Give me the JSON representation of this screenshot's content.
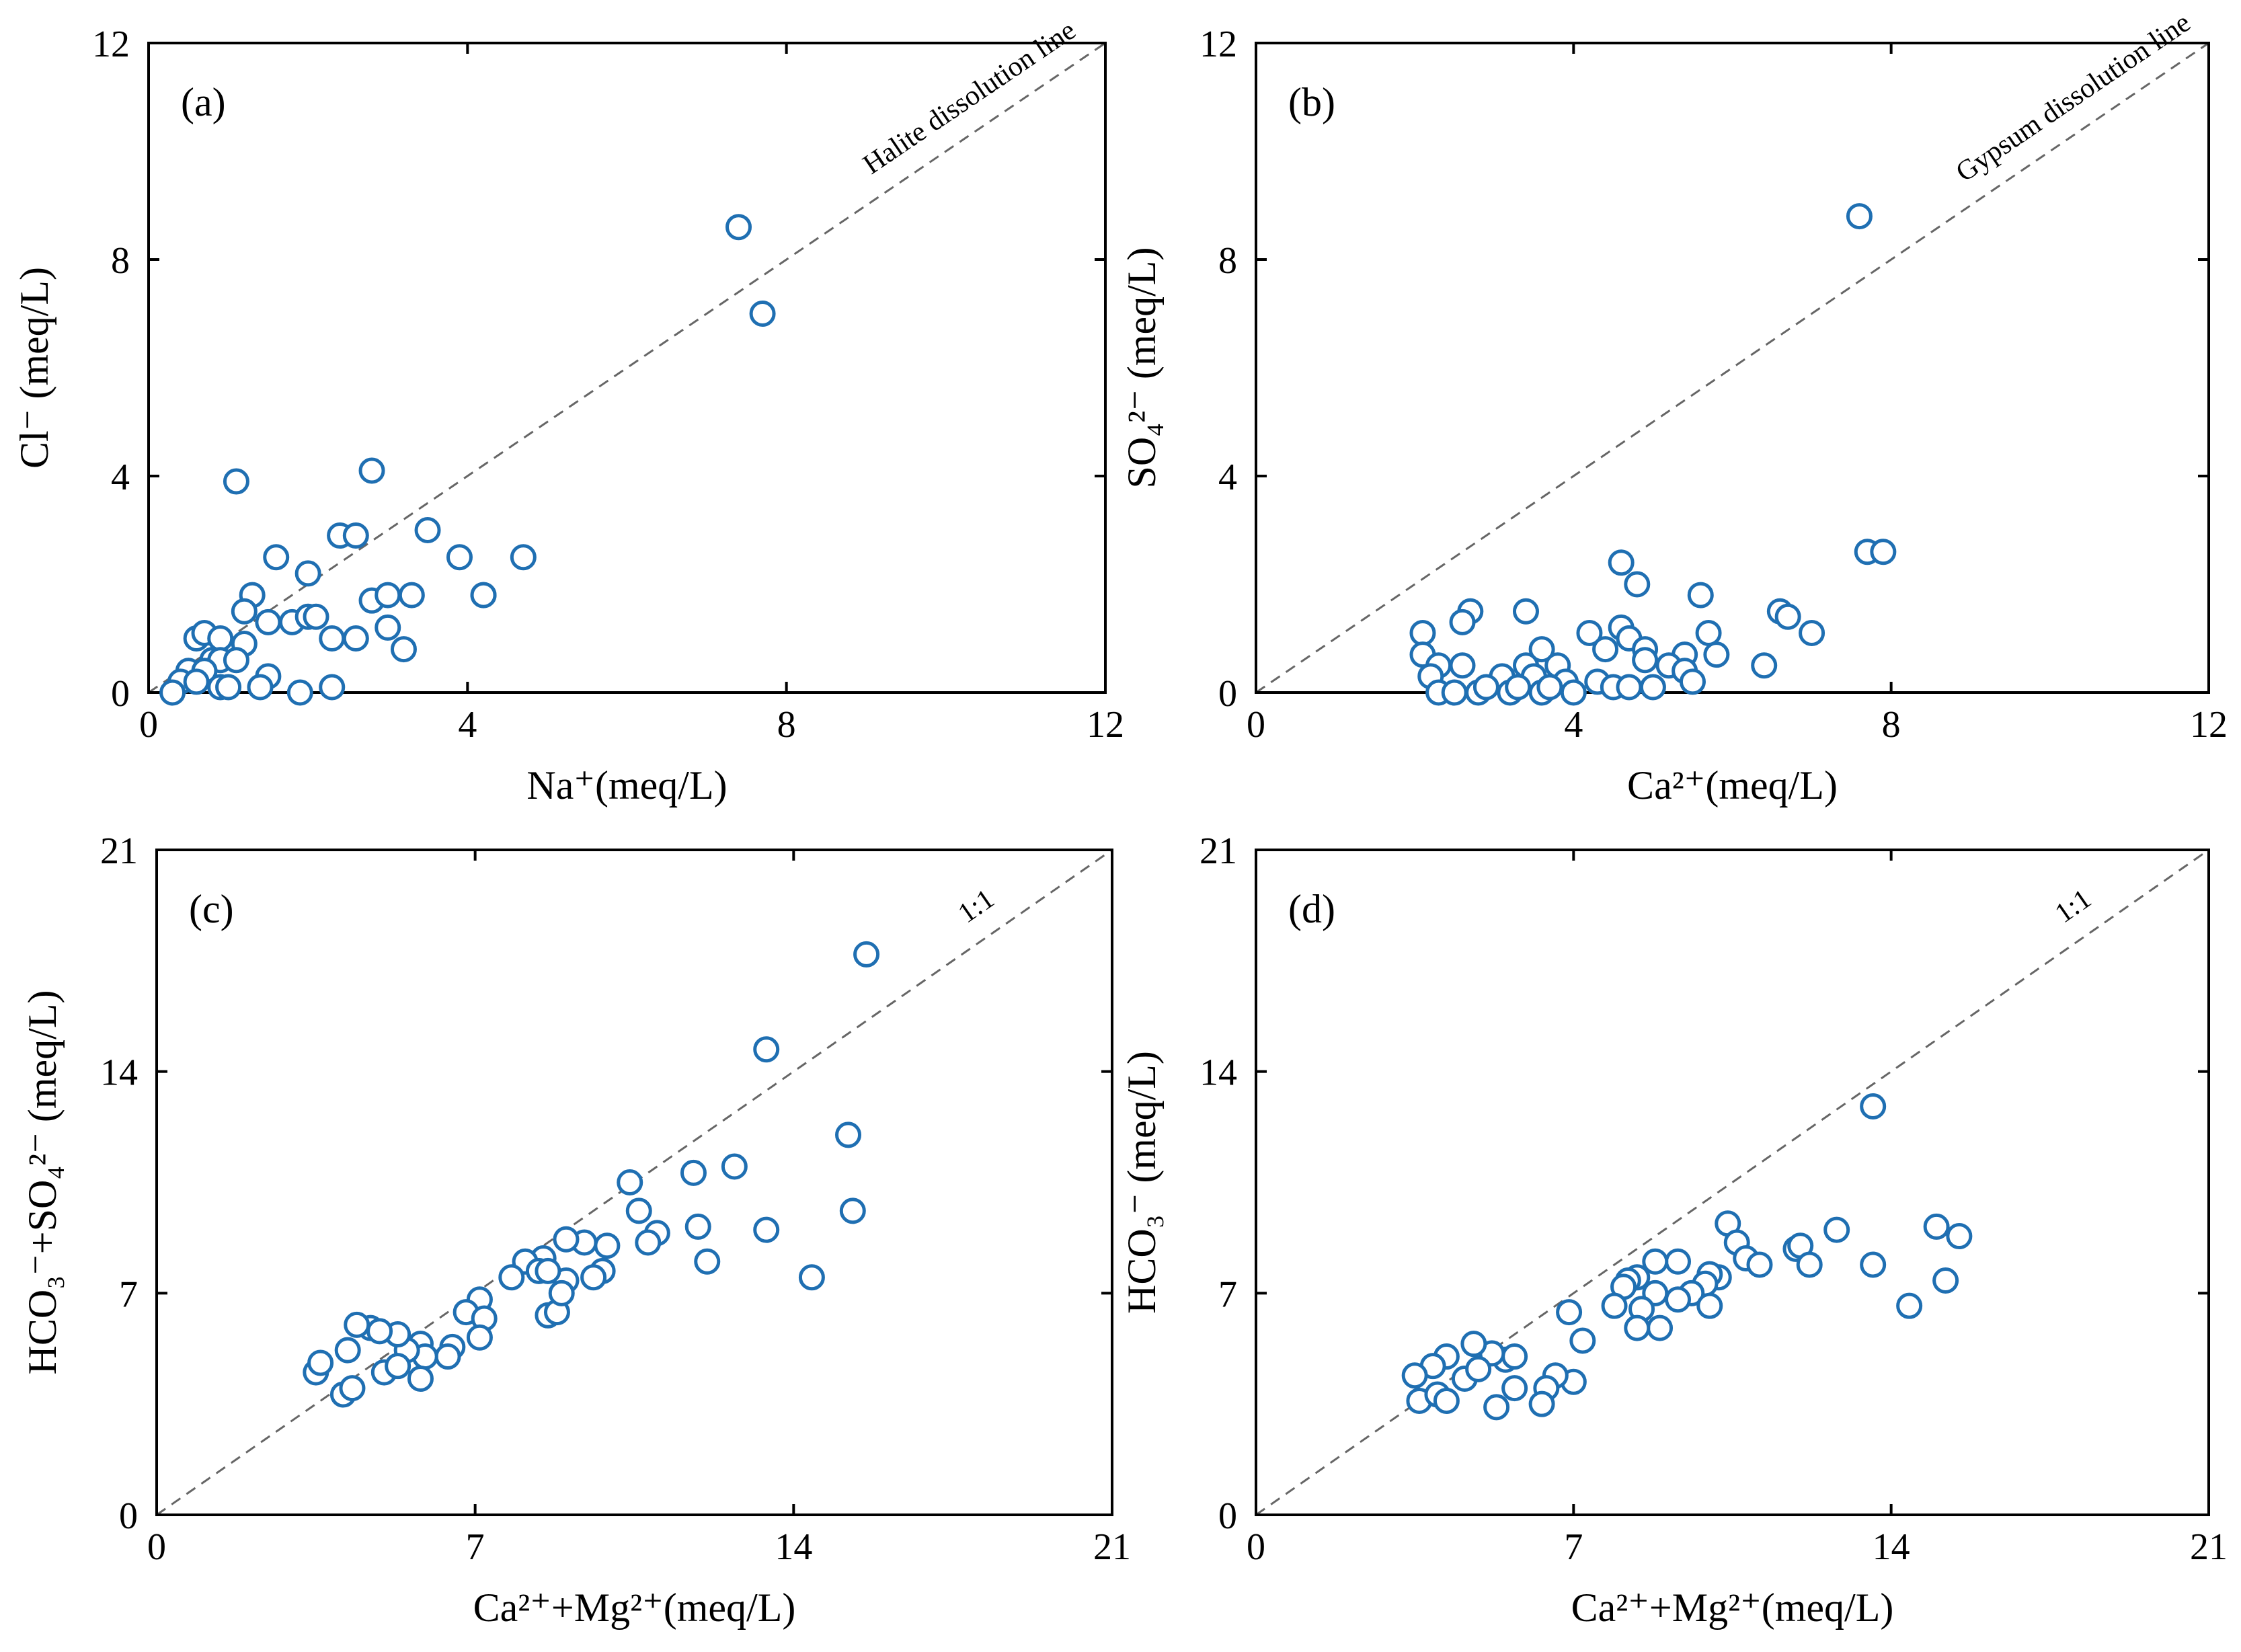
{
  "colors": {
    "marker": "#1f6fb2",
    "axis": "#000000",
    "refline": "#666666",
    "background": "#ffffff"
  },
  "chart_data": [
    {
      "type": "scatter",
      "panel_tag": "(a)",
      "xlabel": "Na⁺(meq/L)",
      "ylabel": "Cl⁻ (meq/L)",
      "xlim": [
        0,
        12
      ],
      "ylim": [
        0,
        12
      ],
      "xticks": [
        "0",
        "4",
        "8",
        "12"
      ],
      "yticks": [
        "0",
        "4",
        "8",
        "12"
      ],
      "reference_line": {
        "slope": 1,
        "label": "Halite dissolution line"
      },
      "points": [
        [
          7.4,
          8.6
        ],
        [
          7.7,
          7.0
        ],
        [
          1.1,
          3.9
        ],
        [
          2.8,
          4.1
        ],
        [
          3.5,
          3.0
        ],
        [
          3.9,
          2.5
        ],
        [
          4.7,
          2.5
        ],
        [
          2.4,
          2.9
        ],
        [
          2.6,
          2.9
        ],
        [
          1.6,
          2.5
        ],
        [
          2.0,
          2.2
        ],
        [
          1.3,
          1.8
        ],
        [
          1.2,
          1.5
        ],
        [
          1.5,
          1.3
        ],
        [
          1.8,
          1.3
        ],
        [
          2.0,
          1.4
        ],
        [
          2.1,
          1.4
        ],
        [
          2.8,
          1.7
        ],
        [
          3.0,
          1.8
        ],
        [
          3.3,
          1.8
        ],
        [
          4.2,
          1.8
        ],
        [
          4.2,
          1.8
        ],
        [
          2.6,
          1.0
        ],
        [
          3.0,
          1.2
        ],
        [
          3.2,
          0.8
        ],
        [
          2.3,
          1.0
        ],
        [
          0.6,
          1.0
        ],
        [
          0.7,
          1.1
        ],
        [
          0.9,
          1.0
        ],
        [
          1.2,
          0.9
        ],
        [
          0.8,
          0.6
        ],
        [
          0.9,
          0.6
        ],
        [
          1.1,
          0.6
        ],
        [
          0.5,
          0.4
        ],
        [
          0.7,
          0.4
        ],
        [
          1.5,
          0.3
        ],
        [
          0.4,
          0.2
        ],
        [
          0.6,
          0.2
        ],
        [
          0.9,
          0.1
        ],
        [
          1.0,
          0.1
        ],
        [
          1.4,
          0.1
        ],
        [
          1.9,
          0.0
        ],
        [
          2.3,
          0.1
        ],
        [
          0.3,
          0.0
        ]
      ]
    },
    {
      "type": "scatter",
      "panel_tag": "(b)",
      "xlabel": "Ca²⁺(meq/L)",
      "ylabel": "SO₄²⁻ (meq/L)",
      "xlim": [
        0,
        12
      ],
      "ylim": [
        0,
        12
      ],
      "xticks": [
        "0",
        "4",
        "8",
        "12"
      ],
      "yticks": [
        "0",
        "4",
        "8",
        "12"
      ],
      "reference_line": {
        "slope": 1,
        "label": "Gypsum dissolution line"
      },
      "points": [
        [
          7.6,
          8.8
        ],
        [
          7.7,
          2.6
        ],
        [
          7.9,
          2.6
        ],
        [
          4.6,
          2.4
        ],
        [
          4.8,
          2.0
        ],
        [
          5.6,
          1.8
        ],
        [
          2.7,
          1.5
        ],
        [
          3.4,
          1.5
        ],
        [
          6.6,
          1.5
        ],
        [
          6.7,
          1.4
        ],
        [
          7.0,
          1.1
        ],
        [
          2.1,
          1.1
        ],
        [
          2.6,
          1.3
        ],
        [
          4.2,
          1.1
        ],
        [
          4.6,
          1.2
        ],
        [
          4.7,
          1.0
        ],
        [
          5.7,
          1.1
        ],
        [
          3.6,
          0.8
        ],
        [
          4.4,
          0.8
        ],
        [
          4.9,
          0.8
        ],
        [
          5.4,
          0.7
        ],
        [
          5.8,
          0.7
        ],
        [
          2.1,
          0.7
        ],
        [
          2.3,
          0.5
        ],
        [
          2.6,
          0.5
        ],
        [
          3.4,
          0.5
        ],
        [
          3.8,
          0.5
        ],
        [
          4.9,
          0.6
        ],
        [
          5.2,
          0.5
        ],
        [
          5.4,
          0.4
        ],
        [
          6.4,
          0.5
        ],
        [
          2.2,
          0.3
        ],
        [
          3.1,
          0.3
        ],
        [
          3.5,
          0.3
        ],
        [
          3.9,
          0.2
        ],
        [
          4.3,
          0.2
        ],
        [
          4.5,
          0.1
        ],
        [
          2.3,
          0.0
        ],
        [
          2.5,
          0.0
        ],
        [
          2.8,
          0.0
        ],
        [
          3.2,
          0.0
        ],
        [
          3.6,
          0.0
        ],
        [
          4.0,
          0.0
        ],
        [
          4.7,
          0.1
        ],
        [
          5.0,
          0.1
        ],
        [
          5.5,
          0.2
        ],
        [
          2.9,
          0.1
        ],
        [
          3.3,
          0.1
        ],
        [
          3.7,
          0.1
        ]
      ]
    },
    {
      "type": "scatter",
      "panel_tag": "(c)",
      "xlabel": "Ca²⁺+Mg²⁺(meq/L)",
      "ylabel": "HCO₃⁻+SO₄²⁻ (meq/L)",
      "xlim": [
        0,
        21
      ],
      "ylim": [
        0,
        21
      ],
      "xticks": [
        "0",
        "7",
        "14",
        "21"
      ],
      "yticks": [
        "0",
        "7",
        "14",
        "21"
      ],
      "reference_line": {
        "slope": 1,
        "label": "1:1"
      },
      "points": [
        [
          15.6,
          17.7
        ],
        [
          13.4,
          14.7
        ],
        [
          15.2,
          12.0
        ],
        [
          12.7,
          11.0
        ],
        [
          11.8,
          10.8
        ],
        [
          10.4,
          10.5
        ],
        [
          10.6,
          9.6
        ],
        [
          11.0,
          8.9
        ],
        [
          11.9,
          9.1
        ],
        [
          13.4,
          9.0
        ],
        [
          15.3,
          9.6
        ],
        [
          14.4,
          7.5
        ],
        [
          12.1,
          8.0
        ],
        [
          10.8,
          8.6
        ],
        [
          9.9,
          8.5
        ],
        [
          9.4,
          8.6
        ],
        [
          9.0,
          8.7
        ],
        [
          8.5,
          8.1
        ],
        [
          8.1,
          8.0
        ],
        [
          8.4,
          7.7
        ],
        [
          7.8,
          7.5
        ],
        [
          9.8,
          7.7
        ],
        [
          9.6,
          7.5
        ],
        [
          9.0,
          7.4
        ],
        [
          7.1,
          6.8
        ],
        [
          6.8,
          6.4
        ],
        [
          7.2,
          6.2
        ],
        [
          7.1,
          5.6
        ],
        [
          6.5,
          5.3
        ],
        [
          6.4,
          5.0
        ],
        [
          5.8,
          5.4
        ],
        [
          5.9,
          5.0
        ],
        [
          5.5,
          5.2
        ],
        [
          5.3,
          5.7
        ],
        [
          4.7,
          5.9
        ],
        [
          4.4,
          6.0
        ],
        [
          4.9,
          5.8
        ],
        [
          4.2,
          5.2
        ],
        [
          3.5,
          4.5
        ],
        [
          3.6,
          4.8
        ],
        [
          4.1,
          3.8
        ],
        [
          4.3,
          4.0
        ],
        [
          5.0,
          4.5
        ],
        [
          5.3,
          4.7
        ],
        [
          5.8,
          4.3
        ],
        [
          8.6,
          6.3
        ],
        [
          8.8,
          6.4
        ],
        [
          8.9,
          7.0
        ],
        [
          8.6,
          7.7
        ]
      ]
    },
    {
      "type": "scatter",
      "panel_tag": "(d)",
      "xlabel": "Ca²⁺+Mg²⁺(meq/L)",
      "ylabel": "HCO₃⁻ (meq/L)",
      "xlim": [
        0,
        21
      ],
      "ylim": [
        0,
        21
      ],
      "xticks": [
        "0",
        "7",
        "14",
        "21"
      ],
      "yticks": [
        "0",
        "7",
        "14",
        "21"
      ],
      "reference_line": {
        "slope": 1,
        "label": "1:1"
      },
      "points": [
        [
          13.6,
          12.9
        ],
        [
          15.0,
          9.1
        ],
        [
          15.5,
          8.8
        ],
        [
          12.8,
          9.0
        ],
        [
          10.4,
          9.2
        ],
        [
          10.6,
          8.6
        ],
        [
          10.8,
          8.1
        ],
        [
          11.1,
          7.9
        ],
        [
          11.9,
          8.4
        ],
        [
          12.0,
          8.5
        ],
        [
          12.2,
          7.9
        ],
        [
          13.6,
          7.9
        ],
        [
          15.2,
          7.4
        ],
        [
          14.4,
          6.6
        ],
        [
          10.2,
          7.5
        ],
        [
          10.0,
          7.6
        ],
        [
          9.9,
          7.3
        ],
        [
          9.6,
          7.0
        ],
        [
          10.0,
          6.6
        ],
        [
          9.3,
          6.8
        ],
        [
          9.3,
          8.0
        ],
        [
          8.8,
          8.0
        ],
        [
          8.4,
          7.5
        ],
        [
          8.2,
          7.4
        ],
        [
          8.1,
          7.2
        ],
        [
          8.8,
          7.0
        ],
        [
          8.5,
          6.5
        ],
        [
          8.9,
          5.9
        ],
        [
          8.4,
          5.9
        ],
        [
          7.9,
          6.6
        ],
        [
          7.2,
          5.5
        ],
        [
          6.9,
          6.4
        ],
        [
          7.0,
          4.2
        ],
        [
          6.6,
          4.4
        ],
        [
          6.4,
          4.0
        ],
        [
          6.3,
          3.5
        ],
        [
          5.5,
          4.9
        ],
        [
          5.7,
          5.0
        ],
        [
          5.2,
          5.1
        ],
        [
          4.8,
          5.4
        ],
        [
          4.2,
          5.0
        ],
        [
          4.6,
          4.3
        ],
        [
          3.9,
          4.7
        ],
        [
          3.5,
          4.4
        ],
        [
          3.6,
          3.6
        ],
        [
          4.0,
          3.8
        ],
        [
          4.2,
          3.6
        ],
        [
          4.9,
          4.6
        ],
        [
          5.3,
          3.4
        ],
        [
          5.7,
          4.0
        ]
      ]
    }
  ]
}
